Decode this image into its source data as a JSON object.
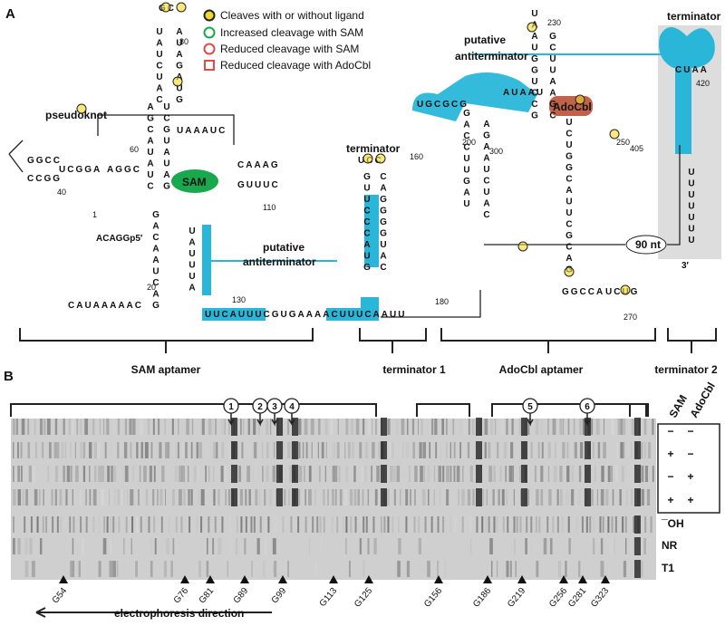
{
  "panel_a": {
    "label": "A",
    "legend": [
      "Cleaves with or without ligand",
      "Increased cleavage with SAM",
      "Reduced cleavage with SAM",
      "Reduced cleavage with AdoCbl"
    ],
    "labels": {
      "pseudoknot": "pseudoknot",
      "sam": "SAM",
      "antiterminator_1a": "putative",
      "antiterminator_1b": "antiterminator",
      "terminator_1": "terminator",
      "antiterminator_2a": "putative",
      "antiterminator_2b": "antiterminator",
      "adocbl": "AdoCbl",
      "terminator_2": "terminator",
      "spacer": "90 nt",
      "five_prime": "ACAGGp5′",
      "three_prime": "3′"
    },
    "numbers": [
      "80",
      "60",
      "40",
      "110",
      "1",
      "20",
      "130",
      "160",
      "180",
      "200",
      "300",
      "230",
      "250",
      "405",
      "420",
      "270"
    ],
    "sequence": [
      "GC",
      "UAUCUAC",
      "AUAGAUG",
      "AGCAUAUC",
      "UCGUAUAG",
      "GGCC",
      "CCGG",
      "UCGGA",
      "AGGC",
      "UAAAUC",
      "CAAAG",
      "GUUUC",
      "GACAAUCAG",
      "UAUUUA",
      "CAUAAAAAC",
      "UUCAUUUCGUGAAAACUUUCAAUU",
      "UCC",
      "GUUCCCAUG",
      "CAGGGGUAC",
      "GACCUUGAU",
      "AGAAUCUAC",
      "UCUGGCAUUCGCAG",
      "UAAUGGUCCG",
      "GCUUAAGC",
      "AUAAU",
      "UGCGCG",
      "UUUUUUU",
      "CUAA",
      "GGCCA",
      "UCUG"
    ]
  },
  "panel_b": {
    "label": "B",
    "regions": [
      "SAM aptamer",
      "terminator 1",
      "AdoCbl aptamer",
      "terminator 2"
    ],
    "sites": [
      "1",
      "2",
      "3",
      "4",
      "5",
      "6"
    ],
    "conditions": {
      "headers": [
        "SAM",
        "AdoCbl"
      ],
      "rows": [
        [
          "−",
          "−"
        ],
        [
          "+",
          "−"
        ],
        [
          "−",
          "+"
        ],
        [
          "+",
          "+"
        ]
      ]
    },
    "lanes": [
      "¯OH",
      "NR",
      "T1"
    ],
    "markers": [
      "G54",
      "G76",
      "G81",
      "G89",
      "G99",
      "G113",
      "G125",
      "G156",
      "G186",
      "G219",
      "G256",
      "G281",
      "G323"
    ],
    "direction": "electrophoresis direction"
  }
}
